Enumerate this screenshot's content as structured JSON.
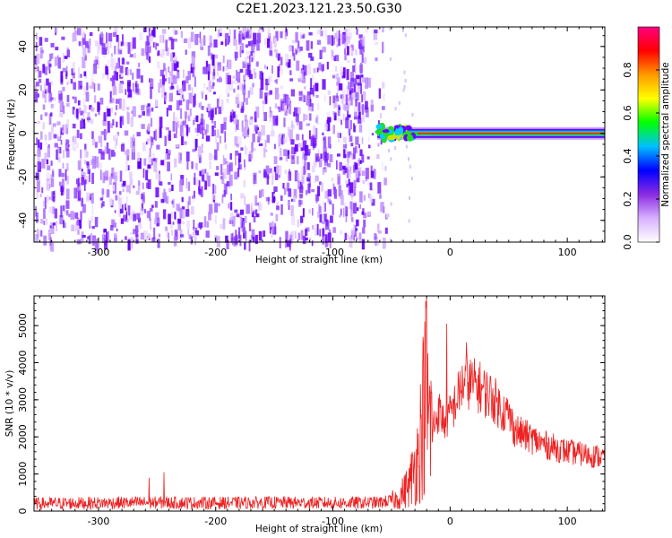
{
  "figure": {
    "title": "C2E1.2023.121.23.50.G30"
  },
  "chart_data": [
    {
      "type": "heatmap",
      "xlabel": "Height of straight line (km)",
      "ylabel": "Frequency (Hz)",
      "xlim": [
        -355,
        132
      ],
      "ylim": [
        -50,
        49
      ],
      "xticks": [
        -300,
        -200,
        -100,
        0,
        100
      ],
      "yticks": [
        -40,
        -20,
        0,
        20,
        40
      ],
      "noise_region_x": [
        -355,
        -55
      ],
      "signal_line_frequency_hz": 0,
      "signal_onset_km": -62,
      "colorbar": {
        "label": "Normalized spectral amplitude",
        "range": [
          0.0,
          1.0
        ],
        "ticks": [
          0.0,
          0.2,
          0.4,
          0.6,
          0.8
        ],
        "colormap": [
          "#ffffff",
          "#d8b0ff",
          "#8a2be2",
          "#0000ff",
          "#00c0ff",
          "#00ff00",
          "#ffff00",
          "#ff9900",
          "#ff0000",
          "#ff0080"
        ]
      },
      "grid": false
    },
    {
      "type": "line",
      "xlabel": "Height of straight line (km)",
      "ylabel": "SNR (10 * v/v)",
      "xlim": [
        -355,
        132
      ],
      "ylim": [
        0,
        5800
      ],
      "xticks": [
        -300,
        -200,
        -100,
        0,
        100
      ],
      "yticks": [
        0,
        1000,
        2000,
        3000,
        4000,
        5000
      ],
      "color": "#ee2222",
      "series": [
        {
          "x": [
            -355,
            -300,
            -250,
            -200,
            -150,
            -100,
            -60,
            -45,
            -35,
            -28,
            -24,
            -21,
            -19,
            -15,
            -10,
            -5,
            0,
            5,
            10,
            15,
            20,
            25,
            30,
            35,
            40,
            45,
            50,
            55,
            60,
            70,
            80,
            90,
            100,
            110,
            120,
            132
          ],
          "y": [
            200,
            220,
            230,
            220,
            230,
            220,
            230,
            320,
            700,
            1400,
            2300,
            3300,
            2600,
            2200,
            2700,
            2400,
            2600,
            2950,
            3400,
            3500,
            3400,
            3350,
            3200,
            3100,
            2900,
            2700,
            2600,
            2200,
            2100,
            1950,
            1800,
            1700,
            1600,
            1550,
            1500,
            1450
          ]
        }
      ],
      "spikes": [
        {
          "x": -257,
          "y": 900
        },
        {
          "x": -244,
          "y": 1050
        },
        {
          "x": -20,
          "y": 5800
        },
        {
          "x": -3,
          "y": 5050
        },
        {
          "x": 14,
          "y": 4550
        }
      ],
      "grid": false
    }
  ]
}
